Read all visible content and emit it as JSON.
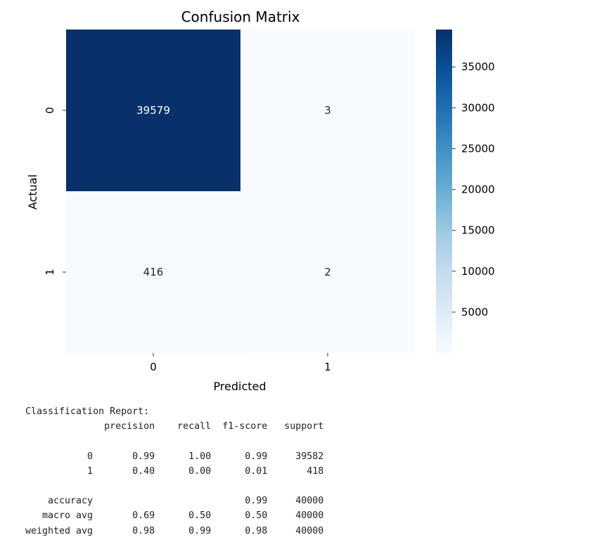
{
  "chart_data": {
    "type": "heatmap",
    "title": "Confusion Matrix",
    "xlabel": "Predicted",
    "ylabel": "Actual",
    "x_categories": [
      "0",
      "1"
    ],
    "y_categories": [
      "0",
      "1"
    ],
    "values": [
      [
        39579,
        3
      ],
      [
        416,
        2
      ]
    ],
    "colormap": "Blues",
    "colorbar": {
      "range": [
        2,
        39579
      ],
      "ticks": [
        5000,
        10000,
        15000,
        20000,
        25000,
        30000,
        35000
      ]
    }
  },
  "report_text": "Classification Report:\n              precision    recall  f1-score   support\n\n           0       0.99      1.00      0.99     39582\n           1       0.40      0.00      0.01       418\n\n    accuracy                           0.99     40000\n   macro avg       0.69      0.50      0.50     40000\nweighted avg       0.98      0.99      0.98     40000"
}
